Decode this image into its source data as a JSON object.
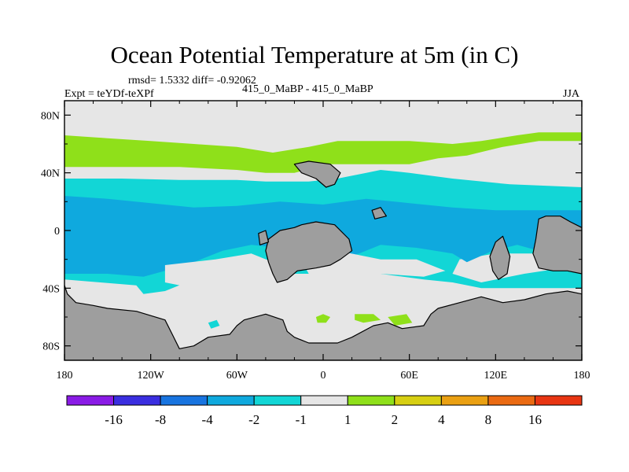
{
  "header": {
    "title": "Ocean Potential Temperature at 5m (in C)",
    "stats": "rmsd= 1.5332 diff= -0.92062",
    "expt": "Expt = teYDf-teXPf",
    "period": "415_0_MaBP - 415_0_MaBP",
    "season": "JJA"
  },
  "chart_data": {
    "type": "heatmap",
    "title": "Ocean Potential Temperature at 5m (in C)",
    "xlabel": "",
    "ylabel": "",
    "xlim": [
      -180,
      180
    ],
    "ylim": [
      -90,
      90
    ],
    "x_ticks": [
      {
        "value": -180,
        "label": "180"
      },
      {
        "value": -120,
        "label": "120W"
      },
      {
        "value": -60,
        "label": "60W"
      },
      {
        "value": 0,
        "label": "0"
      },
      {
        "value": 60,
        "label": "60E"
      },
      {
        "value": 120,
        "label": "120E"
      },
      {
        "value": 180,
        "label": "180"
      }
    ],
    "y_ticks": [
      {
        "value": 80,
        "label": "80N"
      },
      {
        "value": 40,
        "label": "40N"
      },
      {
        "value": 0,
        "label": "0"
      },
      {
        "value": -40,
        "label": "40S"
      },
      {
        "value": -80,
        "label": "80S"
      }
    ],
    "colorbar": {
      "levels": [
        "-16",
        "-8",
        "-4",
        "-2",
        "-1",
        "1",
        "2",
        "4",
        "8",
        "16"
      ],
      "colors": [
        "#8a1be6",
        "#3a2ee0",
        "#1874e0",
        "#0fa9de",
        "#12d6d6",
        "#e6e6e6",
        "#8fe01a",
        "#d7cf12",
        "#eaa012",
        "#ea6a12",
        "#e83512"
      ]
    },
    "land_color": "#9e9e9e",
    "regions": [
      {
        "id": "arctic-band",
        "value_range": "-1 to 1",
        "color": "#e6e6e6",
        "polygon": [
          [
            -180,
            90
          ],
          [
            180,
            90
          ],
          [
            180,
            -90
          ],
          [
            -180,
            -90
          ]
        ]
      },
      {
        "id": "north-warm-band",
        "value_range": "1 to 2",
        "color": "#8fe01a",
        "polygon": [
          [
            -180,
            66
          ],
          [
            -150,
            64
          ],
          [
            -120,
            62
          ],
          [
            -90,
            60
          ],
          [
            -60,
            58
          ],
          [
            -35,
            54
          ],
          [
            -10,
            58
          ],
          [
            10,
            62
          ],
          [
            30,
            62
          ],
          [
            60,
            62
          ],
          [
            90,
            60
          ],
          [
            110,
            62
          ],
          [
            135,
            66
          ],
          [
            150,
            68
          ],
          [
            180,
            68
          ],
          [
            180,
            62
          ],
          [
            150,
            62
          ],
          [
            125,
            58
          ],
          [
            100,
            52
          ],
          [
            80,
            50
          ],
          [
            60,
            46
          ],
          [
            30,
            46
          ],
          [
            5,
            46
          ],
          [
            -20,
            40
          ],
          [
            -40,
            40
          ],
          [
            -60,
            42
          ],
          [
            -100,
            44
          ],
          [
            -140,
            44
          ],
          [
            -180,
            44
          ]
        ]
      },
      {
        "id": "subtropic-light-band",
        "value_range": "-2 to -1",
        "color": "#12d6d6",
        "polygon": [
          [
            -180,
            36
          ],
          [
            -140,
            36
          ],
          [
            -100,
            35
          ],
          [
            -60,
            35
          ],
          [
            -40,
            34
          ],
          [
            -10,
            34
          ],
          [
            10,
            36
          ],
          [
            30,
            40
          ],
          [
            40,
            42
          ],
          [
            60,
            40
          ],
          [
            90,
            36
          ],
          [
            130,
            32
          ],
          [
            180,
            30
          ],
          [
            180,
            -16
          ],
          [
            150,
            -16
          ],
          [
            120,
            -16
          ],
          [
            95,
            -20
          ],
          [
            90,
            -30
          ],
          [
            110,
            -36
          ],
          [
            140,
            -30
          ],
          [
            180,
            -24
          ],
          [
            180,
            -40
          ],
          [
            140,
            -40
          ],
          [
            110,
            -40
          ],
          [
            90,
            -36
          ],
          [
            70,
            -34
          ],
          [
            40,
            -30
          ],
          [
            20,
            -30
          ],
          [
            -5,
            -30
          ],
          [
            -30,
            -30
          ],
          [
            -60,
            -34
          ],
          [
            -90,
            -34
          ],
          [
            -110,
            -42
          ],
          [
            -125,
            -44
          ],
          [
            -130,
            -38
          ],
          [
            -155,
            -36
          ],
          [
            -180,
            -34
          ]
        ]
      },
      {
        "id": "tropic-mid-band",
        "value_range": "-4 to -2",
        "color": "#0fa9de",
        "polygon": [
          [
            -180,
            24
          ],
          [
            -150,
            22
          ],
          [
            -120,
            19
          ],
          [
            -90,
            16
          ],
          [
            -60,
            17
          ],
          [
            -30,
            20
          ],
          [
            0,
            18
          ],
          [
            30,
            22
          ],
          [
            60,
            19
          ],
          [
            90,
            16
          ],
          [
            120,
            14
          ],
          [
            150,
            14
          ],
          [
            180,
            14
          ],
          [
            180,
            -14
          ],
          [
            150,
            -14
          ],
          [
            135,
            -10
          ],
          [
            118,
            -14
          ],
          [
            100,
            -22
          ],
          [
            90,
            -16
          ],
          [
            65,
            -12
          ],
          [
            40,
            -10
          ],
          [
            25,
            -16
          ],
          [
            10,
            -20
          ],
          [
            -10,
            -20
          ],
          [
            -30,
            -12
          ],
          [
            -50,
            -10
          ],
          [
            -70,
            -14
          ],
          [
            -90,
            -22
          ],
          [
            -110,
            -28
          ],
          [
            -125,
            -32
          ],
          [
            -150,
            -30
          ],
          [
            -180,
            -30
          ]
        ]
      },
      {
        "id": "south-light-patch",
        "value_range": "-1 to 1",
        "color": "#e6e6e6",
        "polygon": [
          [
            -110,
            -24
          ],
          [
            -75,
            -20
          ],
          [
            -50,
            -16
          ],
          [
            -35,
            -22
          ],
          [
            -30,
            -36
          ],
          [
            -60,
            -40
          ],
          [
            -90,
            -40
          ],
          [
            -110,
            -36
          ]
        ]
      },
      {
        "id": "south-atlantic-light",
        "value_range": "-1 to 1",
        "color": "#e6e6e6",
        "polygon": [
          [
            -20,
            -12
          ],
          [
            10,
            -14
          ],
          [
            40,
            -20
          ],
          [
            65,
            -20
          ],
          [
            85,
            -28
          ],
          [
            70,
            -32
          ],
          [
            40,
            -30
          ],
          [
            10,
            -34
          ],
          [
            -10,
            -30
          ]
        ]
      },
      {
        "id": "south-green-patch-1",
        "value_range": "1 to 2",
        "color": "#8fe01a",
        "polygon": [
          [
            -5,
            -60
          ],
          [
            0,
            -58
          ],
          [
            5,
            -60
          ],
          [
            2,
            -64
          ],
          [
            -4,
            -64
          ]
        ]
      },
      {
        "id": "south-green-patch-2",
        "value_range": "1 to 2",
        "color": "#8fe01a",
        "polygon": [
          [
            22,
            -58
          ],
          [
            35,
            -58
          ],
          [
            40,
            -62
          ],
          [
            28,
            -64
          ],
          [
            22,
            -62
          ]
        ]
      },
      {
        "id": "south-green-patch-3",
        "value_range": "1 to 2",
        "color": "#8fe01a",
        "polygon": [
          [
            45,
            -60
          ],
          [
            58,
            -58
          ],
          [
            62,
            -64
          ],
          [
            50,
            -66
          ]
        ]
      },
      {
        "id": "south-teal-patch",
        "value_range": "-2 to -1",
        "color": "#12d6d6",
        "polygon": [
          [
            -80,
            -64
          ],
          [
            -74,
            -62
          ],
          [
            -72,
            -66
          ],
          [
            -78,
            -68
          ]
        ]
      },
      {
        "id": "land-antarctic",
        "value_range": "land",
        "color": "#9e9e9e",
        "polygon": [
          [
            -180,
            -38
          ],
          [
            -178,
            -44
          ],
          [
            -172,
            -50
          ],
          [
            -160,
            -52
          ],
          [
            -150,
            -54
          ],
          [
            -130,
            -56
          ],
          [
            -110,
            -62
          ],
          [
            -105,
            -72
          ],
          [
            -100,
            -82
          ],
          [
            -90,
            -80
          ],
          [
            -80,
            -74
          ],
          [
            -65,
            -72
          ],
          [
            -60,
            -66
          ],
          [
            -55,
            -62
          ],
          [
            -40,
            -58
          ],
          [
            -28,
            -62
          ],
          [
            -25,
            -70
          ],
          [
            -20,
            -74
          ],
          [
            -10,
            -78
          ],
          [
            10,
            -78
          ],
          [
            20,
            -74
          ],
          [
            35,
            -66
          ],
          [
            45,
            -64
          ],
          [
            55,
            -68
          ],
          [
            70,
            -66
          ],
          [
            75,
            -58
          ],
          [
            80,
            -54
          ],
          [
            95,
            -50
          ],
          [
            110,
            -46
          ],
          [
            125,
            -50
          ],
          [
            140,
            -48
          ],
          [
            155,
            -44
          ],
          [
            170,
            -42
          ],
          [
            180,
            -44
          ],
          [
            180,
            -90
          ],
          [
            -180,
            -90
          ]
        ]
      },
      {
        "id": "land-central-continent",
        "value_range": "land",
        "color": "#9e9e9e",
        "polygon": [
          [
            -38,
            -6
          ],
          [
            -30,
            0
          ],
          [
            -20,
            2
          ],
          [
            -15,
            4
          ],
          [
            -5,
            6
          ],
          [
            8,
            4
          ],
          [
            18,
            -6
          ],
          [
            20,
            -14
          ],
          [
            12,
            -20
          ],
          [
            5,
            -24
          ],
          [
            -5,
            -26
          ],
          [
            -18,
            -28
          ],
          [
            -25,
            -34
          ],
          [
            -32,
            -36
          ],
          [
            -35,
            -30
          ],
          [
            -38,
            -22
          ],
          [
            -40,
            -14
          ]
        ]
      },
      {
        "id": "land-north-island",
        "value_range": "land",
        "color": "#9e9e9e",
        "polygon": [
          [
            -20,
            46
          ],
          [
            -10,
            48
          ],
          [
            5,
            46
          ],
          [
            12,
            40
          ],
          [
            8,
            32
          ],
          [
            2,
            30
          ],
          [
            -5,
            36
          ],
          [
            -15,
            40
          ]
        ]
      },
      {
        "id": "land-small-island-1",
        "value_range": "land",
        "color": "#9e9e9e",
        "polygon": [
          [
            -45,
            -2
          ],
          [
            -40,
            0
          ],
          [
            -38,
            -8
          ],
          [
            -44,
            -10
          ]
        ]
      },
      {
        "id": "land-small-island-2",
        "value_range": "land",
        "color": "#9e9e9e",
        "polygon": [
          [
            34,
            14
          ],
          [
            40,
            16
          ],
          [
            44,
            10
          ],
          [
            36,
            8
          ]
        ]
      },
      {
        "id": "land-east-peninsula",
        "value_range": "land",
        "color": "#9e9e9e",
        "polygon": [
          [
            120,
            -8
          ],
          [
            125,
            -4
          ],
          [
            130,
            -18
          ],
          [
            128,
            -30
          ],
          [
            122,
            -34
          ],
          [
            118,
            -28
          ],
          [
            116,
            -18
          ]
        ]
      },
      {
        "id": "land-east-continent",
        "value_range": "land",
        "color": "#9e9e9e",
        "polygon": [
          [
            150,
            8
          ],
          [
            155,
            10
          ],
          [
            165,
            10
          ],
          [
            172,
            6
          ],
          [
            180,
            2
          ],
          [
            180,
            -30
          ],
          [
            170,
            -28
          ],
          [
            160,
            -28
          ],
          [
            150,
            -26
          ],
          [
            146,
            -16
          ],
          [
            148,
            -6
          ]
        ]
      }
    ]
  }
}
